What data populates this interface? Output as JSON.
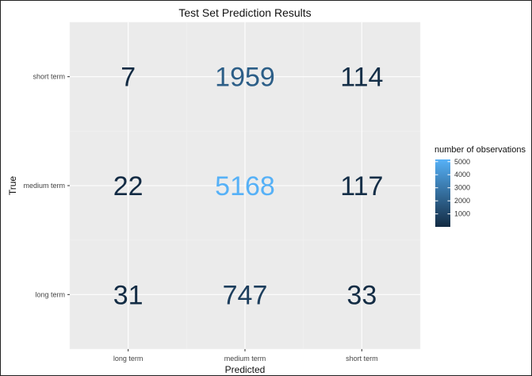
{
  "chart_data": {
    "type": "heatmap",
    "title": "Test Set Prediction Results",
    "xlabel": "Predicted",
    "ylabel": "True",
    "x_categories": [
      "long term",
      "medium term",
      "short term"
    ],
    "y_categories": [
      "long term",
      "medium term",
      "short term"
    ],
    "cells": [
      {
        "x": "long term",
        "y": "short term",
        "value": 7
      },
      {
        "x": "medium term",
        "y": "short term",
        "value": 1959
      },
      {
        "x": "short term",
        "y": "short term",
        "value": 114
      },
      {
        "x": "long term",
        "y": "medium term",
        "value": 22
      },
      {
        "x": "medium term",
        "y": "medium term",
        "value": 5168
      },
      {
        "x": "short term",
        "y": "medium term",
        "value": 117
      },
      {
        "x": "long term",
        "y": "long term",
        "value": 31
      },
      {
        "x": "medium term",
        "y": "long term",
        "value": 747
      },
      {
        "x": "short term",
        "y": "long term",
        "value": 33
      }
    ],
    "legend": {
      "title": "number of observations",
      "ticks": [
        1000,
        2000,
        3000,
        4000,
        5000
      ],
      "range": [
        7,
        5168
      ],
      "colors": {
        "low": "#132B43",
        "high": "#56B1F7"
      },
      "placement": "right"
    },
    "panel_background": "#EBEBEB",
    "grid": true
  }
}
